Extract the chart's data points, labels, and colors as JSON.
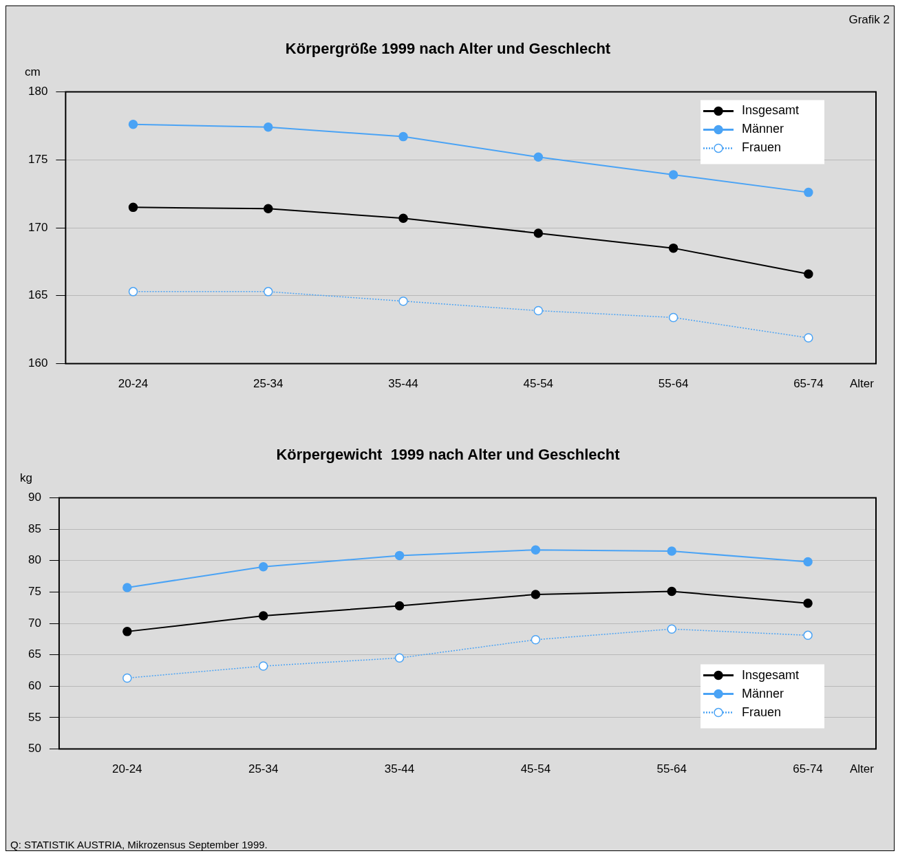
{
  "chart_data": [
    {
      "type": "line",
      "title": "Körpergröße 1999 nach Alter und Geschlecht",
      "ylabel": "cm",
      "xlabel": "Alter",
      "annotations": [
        "Grafik 2"
      ],
      "categories": [
        "20-24",
        "25-34",
        "35-44",
        "45-54",
        "55-64",
        "65-74"
      ],
      "ylim": [
        160,
        180
      ],
      "yticks": [
        160,
        165,
        170,
        175,
        180
      ],
      "grid": "y",
      "legend": "top right",
      "marker": "circle",
      "series": [
        {
          "name": "Insgesamt",
          "color": "#000000",
          "line_style": "solid",
          "values": [
            171.5,
            171.4,
            170.7,
            169.6,
            168.5,
            166.6
          ]
        },
        {
          "name": "Männer",
          "color": "#4aa3f5",
          "line_style": "solid",
          "values": [
            177.6,
            177.4,
            176.7,
            175.2,
            173.9,
            172.6
          ]
        },
        {
          "name": "Frauen",
          "color": "#4aa3f5",
          "line_style": "dotted",
          "values": [
            165.3,
            165.3,
            164.6,
            163.9,
            163.4,
            161.9
          ]
        }
      ]
    },
    {
      "type": "line",
      "title": "Körpergewicht  1999 nach Alter und Geschlecht",
      "ylabel": "kg",
      "xlabel": "Alter",
      "annotations": [
        "Q: STATISTIK AUSTRIA, Mikrozensus September 1999."
      ],
      "categories": [
        "20-24",
        "25-34",
        "35-44",
        "45-54",
        "55-64",
        "65-74"
      ],
      "ylim": [
        50,
        90
      ],
      "yticks": [
        50,
        55,
        60,
        65,
        70,
        75,
        80,
        85,
        90
      ],
      "grid": "y",
      "legend": "bottom right",
      "marker": "circle",
      "series": [
        {
          "name": "Insgesamt",
          "color": "#000000",
          "line_style": "solid",
          "values": [
            68.7,
            71.2,
            72.8,
            74.6,
            75.1,
            73.2
          ]
        },
        {
          "name": "Männer",
          "color": "#4aa3f5",
          "line_style": "solid",
          "values": [
            75.7,
            79.0,
            80.8,
            81.7,
            81.5,
            79.8
          ]
        },
        {
          "name": "Frauen",
          "color": "#4aa3f5",
          "line_style": "dotted",
          "values": [
            61.3,
            63.2,
            64.5,
            67.4,
            69.1,
            68.1
          ]
        }
      ]
    }
  ]
}
